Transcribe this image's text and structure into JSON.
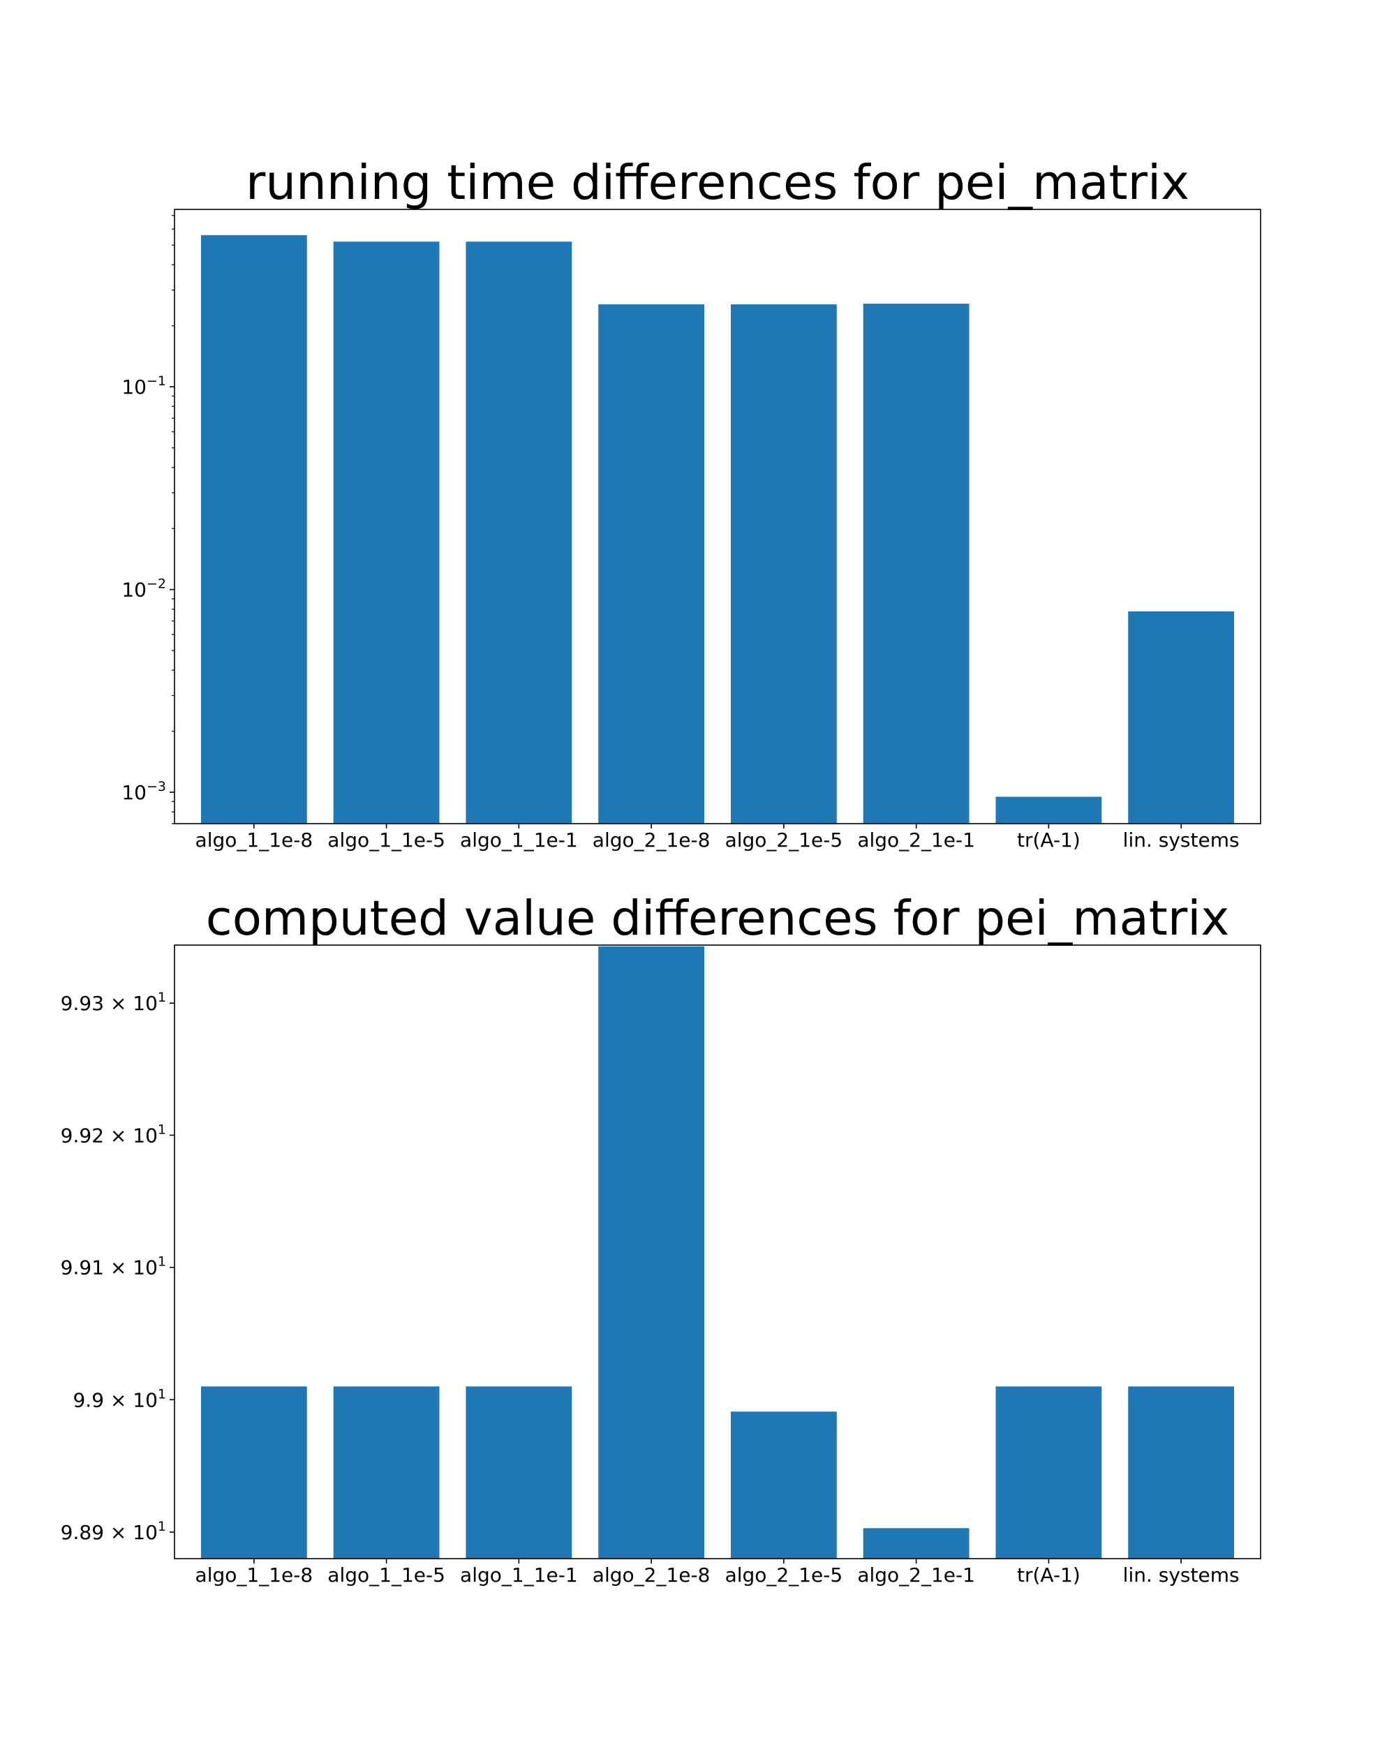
{
  "chart_data": [
    {
      "type": "bar",
      "title": "running time differences for pei_matrix",
      "xlabel": "",
      "ylabel": "",
      "yscale": "log",
      "ylim": [
        0.0007,
        0.75
      ],
      "grid": false,
      "color": "#1f77b4",
      "categories": [
        "algo_1_1e-8",
        "algo_1_1e-5",
        "algo_1_1e-1",
        "algo_2_1e-8",
        "algo_2_1e-5",
        "algo_2_1e-1",
        "tr(A-1)",
        "lin. systems"
      ],
      "values": [
        0.56,
        0.52,
        0.52,
        0.255,
        0.255,
        0.257,
        0.00095,
        0.0078
      ],
      "yticks": [
        {
          "value": 0.001,
          "base": "10",
          "exp": "−3"
        },
        {
          "value": 0.01,
          "base": "10",
          "exp": "−2"
        },
        {
          "value": 0.1,
          "base": "10",
          "exp": "−1"
        }
      ]
    },
    {
      "type": "bar",
      "title": "computed value differences for pei_matrix",
      "xlabel": "",
      "ylabel": "",
      "yscale": "log",
      "ylim": [
        98.88,
        99.344
      ],
      "grid": false,
      "color": "#1f77b4",
      "categories": [
        "algo_1_1e-8",
        "algo_1_1e-5",
        "algo_1_1e-1",
        "algo_2_1e-8",
        "algo_2_1e-5",
        "algo_2_1e-1",
        "tr(A-1)",
        "lin. systems"
      ],
      "values": [
        99.01,
        99.01,
        99.01,
        99.343,
        98.991,
        98.903,
        99.01,
        99.01
      ],
      "yticks": [
        {
          "value": 98.9,
          "base": "9.89 × 10",
          "exp": "1"
        },
        {
          "value": 99.0,
          "base": "9.9 × 10",
          "exp": "1"
        },
        {
          "value": 99.1,
          "base": "9.91 × 10",
          "exp": "1"
        },
        {
          "value": 99.2,
          "base": "9.92 × 10",
          "exp": "1"
        },
        {
          "value": 99.3,
          "base": "9.93 × 10",
          "exp": "1"
        }
      ]
    }
  ]
}
